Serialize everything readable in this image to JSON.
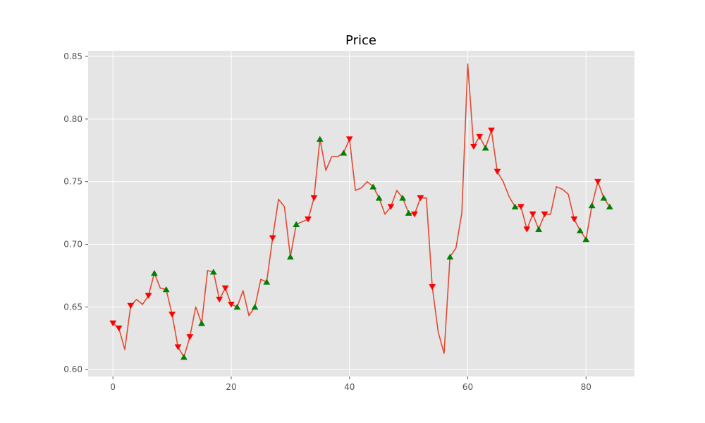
{
  "chart_data": {
    "type": "line",
    "title": "Price",
    "xlabel": "",
    "ylabel": "",
    "xlim": [
      -4.2,
      88.2
    ],
    "ylim": [
      0.5945,
      0.8545
    ],
    "xticks": [
      0,
      20,
      40,
      60,
      80
    ],
    "yticks": [
      0.6,
      0.65,
      0.7,
      0.75,
      0.8,
      0.85
    ],
    "xtick_labels": [
      "0",
      "20",
      "40",
      "60",
      "80"
    ],
    "ytick_labels": [
      "0.60",
      "0.65",
      "0.70",
      "0.75",
      "0.80",
      "0.85"
    ],
    "grid": true,
    "series": [
      {
        "line_color": "#e24a33",
        "x": [
          0,
          1,
          2,
          3,
          4,
          5,
          6,
          7,
          8,
          9,
          10,
          11,
          12,
          13,
          14,
          15,
          16,
          17,
          18,
          19,
          20,
          21,
          22,
          23,
          24,
          25,
          26,
          27,
          28,
          29,
          30,
          31,
          32,
          33,
          34,
          35,
          36,
          37,
          38,
          39,
          40,
          41,
          42,
          43,
          44,
          45,
          46,
          47,
          48,
          49,
          50,
          51,
          52,
          53,
          54,
          55,
          56,
          57,
          58,
          59,
          60,
          61,
          62,
          63,
          64,
          65,
          66,
          67,
          68,
          69,
          70,
          71,
          72,
          73,
          74,
          75,
          76,
          77,
          78,
          79,
          80,
          81,
          82,
          83,
          84
        ],
        "values": [
          0.637,
          0.633,
          0.616,
          0.651,
          0.656,
          0.652,
          0.659,
          0.677,
          0.665,
          0.664,
          0.644,
          0.618,
          0.61,
          0.626,
          0.65,
          0.637,
          0.679,
          0.678,
          0.656,
          0.665,
          0.652,
          0.65,
          0.663,
          0.643,
          0.65,
          0.672,
          0.67,
          0.705,
          0.736,
          0.73,
          0.69,
          0.716,
          0.718,
          0.72,
          0.737,
          0.784,
          0.759,
          0.77,
          0.77,
          0.773,
          0.784,
          0.743,
          0.745,
          0.75,
          0.746,
          0.737,
          0.724,
          0.73,
          0.743,
          0.737,
          0.725,
          0.724,
          0.737,
          0.737,
          0.666,
          0.63,
          0.613,
          0.69,
          0.697,
          0.725,
          0.844,
          0.778,
          0.786,
          0.777,
          0.791,
          0.758,
          0.75,
          0.738,
          0.73,
          0.73,
          0.712,
          0.724,
          0.712,
          0.724,
          0.724,
          0.746,
          0.744,
          0.74,
          0.72,
          0.711,
          0.704,
          0.731,
          0.75,
          0.737,
          0.73
        ]
      }
    ],
    "sell_markers": {
      "color": "#ff0000",
      "shape": "triangle-down",
      "x": [
        0,
        1,
        3,
        6,
        10,
        11,
        13,
        18,
        19,
        20,
        27,
        33,
        34,
        40,
        47,
        51,
        52,
        54,
        61,
        62,
        64,
        65,
        69,
        70,
        71,
        73,
        78,
        82
      ]
    },
    "buy_markers": {
      "color": "#008000",
      "shape": "triangle-up",
      "x": [
        7,
        9,
        12,
        15,
        17,
        21,
        24,
        26,
        30,
        31,
        35,
        39,
        44,
        45,
        49,
        50,
        57,
        63,
        68,
        72,
        79,
        80,
        81,
        83,
        84
      ]
    },
    "style": {
      "background": "#e5e5e5",
      "grid_color": "#ffffff",
      "figure_background": "#ffffff"
    }
  }
}
